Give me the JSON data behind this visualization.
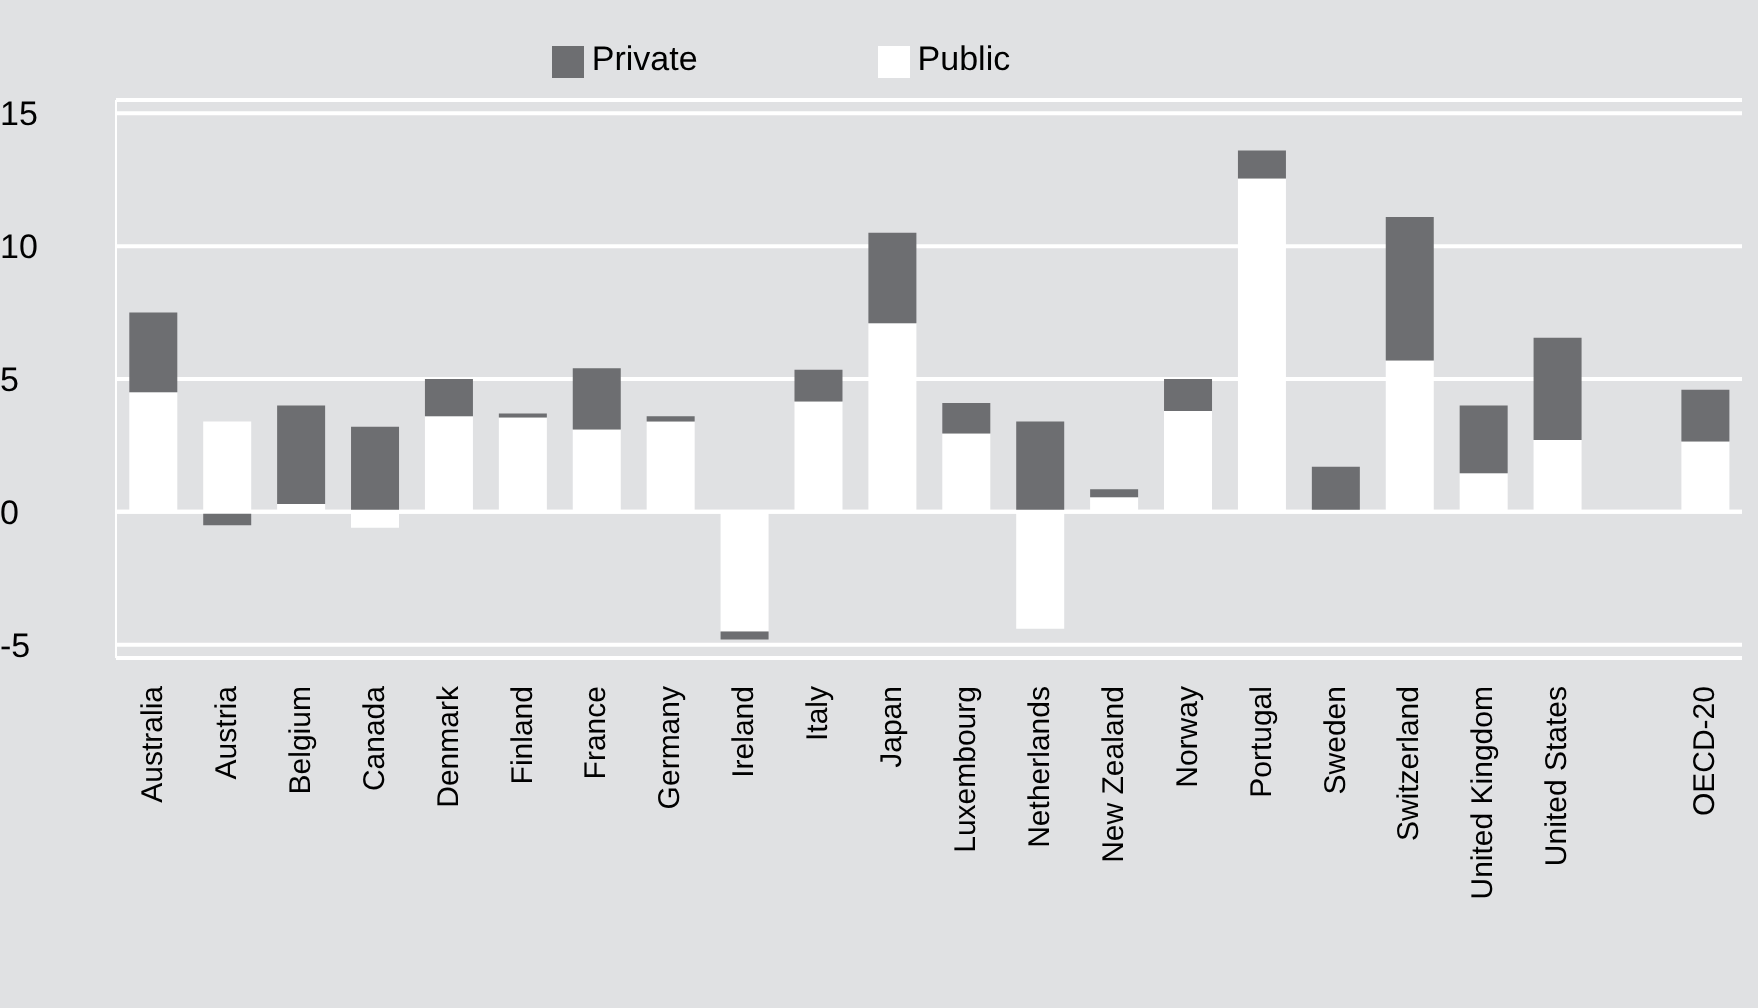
{
  "chart_data": {
    "type": "bar",
    "stacked": true,
    "categories": [
      "Australia",
      "Austria",
      "Belgium",
      "Canada",
      "Denmark",
      "Finland",
      "France",
      "Germany",
      "Ireland",
      "Italy",
      "Japan",
      "Luxembourg",
      "Netherlands",
      "New Zealand",
      "Norway",
      "Portugal",
      "Sweden",
      "Switzerland",
      "United Kingdom",
      "United States",
      null,
      "OECD-20"
    ],
    "series": [
      {
        "name": "Public",
        "color": "#ffffff",
        "values": [
          4.5,
          3.4,
          0.3,
          -0.6,
          3.6,
          3.55,
          3.1,
          3.4,
          -4.5,
          4.15,
          7.1,
          2.95,
          -4.4,
          0.55,
          3.8,
          12.55,
          0,
          5.7,
          1.45,
          2.7,
          null,
          2.65
        ]
      },
      {
        "name": "Private",
        "color": "#6d6e71",
        "values": [
          3.0,
          -0.5,
          3.7,
          3.2,
          1.4,
          0.15,
          2.3,
          0.2,
          -0.3,
          1.2,
          3.4,
          1.15,
          3.4,
          0.3,
          1.2,
          1.05,
          1.7,
          5.4,
          2.55,
          3.85,
          null,
          1.95
        ]
      }
    ],
    "ylim": [
      -5.5,
      15.5
    ],
    "yticks": [
      -5,
      0,
      5,
      10,
      15
    ],
    "grid": "y",
    "legend": "top"
  }
}
